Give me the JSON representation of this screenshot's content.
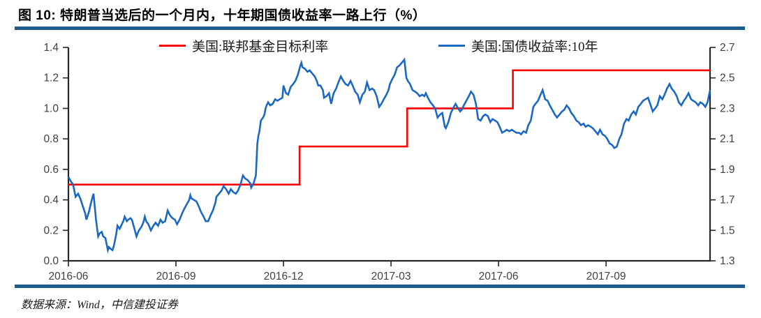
{
  "header": {
    "title": "图 10: 特朗普当选后的一个月内，十年期国债收益率一路上行（%）"
  },
  "footer": {
    "source": "数据来源：Wind，中信建投证券"
  },
  "colors": {
    "accent_bar": "#1E5C8B",
    "fed_funds_line": "#FE0000",
    "treasury_line": "#1B68C4",
    "axis_line": "#262626",
    "tick_label": "#404040"
  },
  "chart_data": {
    "type": "line",
    "title": "特朗普当选后的一个月内，十年期国债收益率一路上行（%）",
    "xlabel": "",
    "ylabel_left": "美国:联邦基金目标利率 (%)",
    "ylabel_right": "美国:国债收益率:10年 (%)",
    "grid": false,
    "legend_position": "top",
    "x_range_note": "m = months since 2016-06-01",
    "x_max_m": 17.9,
    "x_ticks": [
      {
        "m": 0,
        "label": "2016-06"
      },
      {
        "m": 3,
        "label": "2016-09"
      },
      {
        "m": 6,
        "label": "2016-12"
      },
      {
        "m": 9,
        "label": "2017-03"
      },
      {
        "m": 12,
        "label": "2017-06"
      },
      {
        "m": 15,
        "label": "2017-09"
      }
    ],
    "left_axis": {
      "min": 0.0,
      "max": 1.4,
      "step": 0.2,
      "tick_labels": [
        "0.0",
        "0.2",
        "0.4",
        "0.6",
        "0.8",
        "1.0",
        "1.2",
        "1.4"
      ]
    },
    "right_axis": {
      "min": 1.3,
      "max": 2.7,
      "step": 0.2,
      "tick_labels": [
        "1.3",
        "1.5",
        "1.7",
        "1.9",
        "2.1",
        "2.3",
        "2.5",
        "2.7"
      ]
    },
    "series": [
      {
        "name": "美国:联邦基金目标利率",
        "axis": "left",
        "color": "#FE0000",
        "style": "step",
        "points": [
          [
            0,
            0.5
          ],
          [
            6.45,
            0.5
          ],
          [
            6.45,
            0.75
          ],
          [
            9.45,
            0.75
          ],
          [
            9.45,
            1.0
          ],
          [
            12.4,
            1.0
          ],
          [
            12.4,
            1.25
          ],
          [
            17.9,
            1.25
          ]
        ]
      },
      {
        "name": "美国:国债收益率:10年",
        "axis": "right",
        "color": "#1B68C4",
        "style": "line",
        "points": [
          [
            0.0,
            1.85
          ],
          [
            0.07,
            1.82
          ],
          [
            0.13,
            1.8
          ],
          [
            0.2,
            1.72
          ],
          [
            0.27,
            1.74
          ],
          [
            0.33,
            1.71
          ],
          [
            0.4,
            1.66
          ],
          [
            0.47,
            1.61
          ],
          [
            0.5,
            1.57
          ],
          [
            0.57,
            1.62
          ],
          [
            0.63,
            1.68
          ],
          [
            0.7,
            1.74
          ],
          [
            0.75,
            1.62
          ],
          [
            0.77,
            1.57
          ],
          [
            0.83,
            1.46
          ],
          [
            0.87,
            1.48
          ],
          [
            0.93,
            1.49
          ],
          [
            0.97,
            1.46
          ],
          [
            1.03,
            1.45
          ],
          [
            1.1,
            1.37
          ],
          [
            1.13,
            1.39
          ],
          [
            1.17,
            1.38
          ],
          [
            1.23,
            1.37
          ],
          [
            1.27,
            1.4
          ],
          [
            1.33,
            1.47
          ],
          [
            1.37,
            1.53
          ],
          [
            1.43,
            1.51
          ],
          [
            1.47,
            1.53
          ],
          [
            1.53,
            1.56
          ],
          [
            1.57,
            1.59
          ],
          [
            1.63,
            1.56
          ],
          [
            1.67,
            1.57
          ],
          [
            1.73,
            1.58
          ],
          [
            1.77,
            1.57
          ],
          [
            1.83,
            1.52
          ],
          [
            1.9,
            1.46
          ],
          [
            1.93,
            1.48
          ],
          [
            1.97,
            1.5
          ],
          [
            2.03,
            1.52
          ],
          [
            2.07,
            1.54
          ],
          [
            2.1,
            1.56
          ],
          [
            2.13,
            1.59
          ],
          [
            2.17,
            1.56
          ],
          [
            2.23,
            1.54
          ],
          [
            2.3,
            1.5
          ],
          [
            2.37,
            1.53
          ],
          [
            2.43,
            1.55
          ],
          [
            2.5,
            1.53
          ],
          [
            2.57,
            1.57
          ],
          [
            2.63,
            1.55
          ],
          [
            2.7,
            1.56
          ],
          [
            2.77,
            1.63
          ],
          [
            2.83,
            1.6
          ],
          [
            2.9,
            1.58
          ],
          [
            2.97,
            1.57
          ],
          [
            3.03,
            1.54
          ],
          [
            3.1,
            1.57
          ],
          [
            3.17,
            1.61
          ],
          [
            3.23,
            1.64
          ],
          [
            3.3,
            1.67
          ],
          [
            3.37,
            1.7
          ],
          [
            3.4,
            1.73
          ],
          [
            3.43,
            1.71
          ],
          [
            3.5,
            1.7
          ],
          [
            3.57,
            1.69
          ],
          [
            3.63,
            1.66
          ],
          [
            3.7,
            1.62
          ],
          [
            3.77,
            1.59
          ],
          [
            3.83,
            1.56
          ],
          [
            3.9,
            1.56
          ],
          [
            3.97,
            1.6
          ],
          [
            4.03,
            1.63
          ],
          [
            4.1,
            1.68
          ],
          [
            4.13,
            1.72
          ],
          [
            4.2,
            1.74
          ],
          [
            4.27,
            1.76
          ],
          [
            4.33,
            1.79
          ],
          [
            4.4,
            1.77
          ],
          [
            4.47,
            1.74
          ],
          [
            4.53,
            1.77
          ],
          [
            4.6,
            1.75
          ],
          [
            4.67,
            1.74
          ],
          [
            4.73,
            1.76
          ],
          [
            4.8,
            1.8
          ],
          [
            4.87,
            1.86
          ],
          [
            4.93,
            1.84
          ],
          [
            5.0,
            1.83
          ],
          [
            5.07,
            1.81
          ],
          [
            5.1,
            1.78
          ],
          [
            5.17,
            1.81
          ],
          [
            5.23,
            1.86
          ],
          [
            5.27,
            2.07
          ],
          [
            5.3,
            2.12
          ],
          [
            5.33,
            2.15
          ],
          [
            5.37,
            2.22
          ],
          [
            5.43,
            2.24
          ],
          [
            5.47,
            2.26
          ],
          [
            5.5,
            2.3
          ],
          [
            5.53,
            2.32
          ],
          [
            5.57,
            2.34
          ],
          [
            5.63,
            2.32
          ],
          [
            5.7,
            2.33
          ],
          [
            5.77,
            2.36
          ],
          [
            5.83,
            2.35
          ],
          [
            5.9,
            2.36
          ],
          [
            5.97,
            2.37
          ],
          [
            6.0,
            2.45
          ],
          [
            6.07,
            2.4
          ],
          [
            6.13,
            2.39
          ],
          [
            6.2,
            2.44
          ],
          [
            6.27,
            2.46
          ],
          [
            6.33,
            2.48
          ],
          [
            6.4,
            2.52
          ],
          [
            6.47,
            2.58
          ],
          [
            6.5,
            2.6
          ],
          [
            6.53,
            2.57
          ],
          [
            6.6,
            2.56
          ],
          [
            6.67,
            2.54
          ],
          [
            6.73,
            2.55
          ],
          [
            6.8,
            2.53
          ],
          [
            6.87,
            2.51
          ],
          [
            6.93,
            2.48
          ],
          [
            6.97,
            2.45
          ],
          [
            7.03,
            2.45
          ],
          [
            7.1,
            2.42
          ],
          [
            7.13,
            2.37
          ],
          [
            7.2,
            2.38
          ],
          [
            7.27,
            2.4
          ],
          [
            7.33,
            2.33
          ],
          [
            7.4,
            2.4
          ],
          [
            7.47,
            2.43
          ],
          [
            7.53,
            2.47
          ],
          [
            7.6,
            2.51
          ],
          [
            7.67,
            2.48
          ],
          [
            7.73,
            2.46
          ],
          [
            7.8,
            2.45
          ],
          [
            7.87,
            2.48
          ],
          [
            7.93,
            2.45
          ],
          [
            8.0,
            2.41
          ],
          [
            8.07,
            2.39
          ],
          [
            8.13,
            2.34
          ],
          [
            8.2,
            2.39
          ],
          [
            8.27,
            2.41
          ],
          [
            8.33,
            2.47
          ],
          [
            8.4,
            2.42
          ],
          [
            8.47,
            2.43
          ],
          [
            8.53,
            2.42
          ],
          [
            8.6,
            2.38
          ],
          [
            8.67,
            2.31
          ],
          [
            8.73,
            2.33
          ],
          [
            8.8,
            2.36
          ],
          [
            8.87,
            2.39
          ],
          [
            8.93,
            2.42
          ],
          [
            8.97,
            2.46
          ],
          [
            9.03,
            2.49
          ],
          [
            9.1,
            2.52
          ],
          [
            9.17,
            2.57
          ],
          [
            9.23,
            2.58
          ],
          [
            9.3,
            2.6
          ],
          [
            9.37,
            2.62
          ],
          [
            9.43,
            2.5
          ],
          [
            9.47,
            2.48
          ],
          [
            9.53,
            2.46
          ],
          [
            9.6,
            2.42
          ],
          [
            9.67,
            2.41
          ],
          [
            9.73,
            2.4
          ],
          [
            9.8,
            2.38
          ],
          [
            9.87,
            2.39
          ],
          [
            9.93,
            2.38
          ],
          [
            9.97,
            2.4
          ],
          [
            10.03,
            2.37
          ],
          [
            10.1,
            2.34
          ],
          [
            10.17,
            2.32
          ],
          [
            10.23,
            2.3
          ],
          [
            10.3,
            2.24
          ],
          [
            10.37,
            2.26
          ],
          [
            10.43,
            2.27
          ],
          [
            10.5,
            2.18
          ],
          [
            10.53,
            2.17
          ],
          [
            10.6,
            2.21
          ],
          [
            10.67,
            2.27
          ],
          [
            10.73,
            2.3
          ],
          [
            10.8,
            2.33
          ],
          [
            10.87,
            2.3
          ],
          [
            10.93,
            2.28
          ],
          [
            10.97,
            2.29
          ],
          [
            11.03,
            2.32
          ],
          [
            11.1,
            2.35
          ],
          [
            11.17,
            2.38
          ],
          [
            11.23,
            2.41
          ],
          [
            11.3,
            2.39
          ],
          [
            11.37,
            2.33
          ],
          [
            11.43,
            2.23
          ],
          [
            11.5,
            2.22
          ],
          [
            11.57,
            2.25
          ],
          [
            11.63,
            2.26
          ],
          [
            11.7,
            2.25
          ],
          [
            11.77,
            2.21
          ],
          [
            11.83,
            2.23
          ],
          [
            11.9,
            2.22
          ],
          [
            11.97,
            2.21
          ],
          [
            12.03,
            2.18
          ],
          [
            12.1,
            2.14
          ],
          [
            12.17,
            2.15
          ],
          [
            12.23,
            2.16
          ],
          [
            12.3,
            2.15
          ],
          [
            12.37,
            2.16
          ],
          [
            12.43,
            2.15
          ],
          [
            12.5,
            2.14
          ],
          [
            12.57,
            2.14
          ],
          [
            12.63,
            2.13
          ],
          [
            12.7,
            2.15
          ],
          [
            12.77,
            2.14
          ],
          [
            12.83,
            2.19
          ],
          [
            12.9,
            2.22
          ],
          [
            12.97,
            2.31
          ],
          [
            13.03,
            2.33
          ],
          [
            13.1,
            2.35
          ],
          [
            13.17,
            2.39
          ],
          [
            13.23,
            2.42
          ],
          [
            13.3,
            2.36
          ],
          [
            13.37,
            2.35
          ],
          [
            13.43,
            2.32
          ],
          [
            13.5,
            2.29
          ],
          [
            13.57,
            2.26
          ],
          [
            13.63,
            2.24
          ],
          [
            13.7,
            2.26
          ],
          [
            13.77,
            2.28
          ],
          [
            13.83,
            2.29
          ],
          [
            13.9,
            2.32
          ],
          [
            13.97,
            2.3
          ],
          [
            14.03,
            2.27
          ],
          [
            14.1,
            2.25
          ],
          [
            14.17,
            2.22
          ],
          [
            14.23,
            2.21
          ],
          [
            14.3,
            2.19
          ],
          [
            14.37,
            2.2
          ],
          [
            14.43,
            2.18
          ],
          [
            14.5,
            2.19
          ],
          [
            14.57,
            2.18
          ],
          [
            14.63,
            2.17
          ],
          [
            14.7,
            2.15
          ],
          [
            14.77,
            2.13
          ],
          [
            14.83,
            2.16
          ],
          [
            14.9,
            2.13
          ],
          [
            14.97,
            2.12
          ],
          [
            15.03,
            2.1
          ],
          [
            15.1,
            2.07
          ],
          [
            15.17,
            2.06
          ],
          [
            15.23,
            2.04
          ],
          [
            15.3,
            2.05
          ],
          [
            15.37,
            2.1
          ],
          [
            15.43,
            2.13
          ],
          [
            15.5,
            2.2
          ],
          [
            15.57,
            2.23
          ],
          [
            15.63,
            2.22
          ],
          [
            15.7,
            2.26
          ],
          [
            15.77,
            2.28
          ],
          [
            15.83,
            2.26
          ],
          [
            15.9,
            2.31
          ],
          [
            15.97,
            2.33
          ],
          [
            16.03,
            2.35
          ],
          [
            16.1,
            2.36
          ],
          [
            16.17,
            2.37
          ],
          [
            16.23,
            2.33
          ],
          [
            16.3,
            2.28
          ],
          [
            16.37,
            2.3
          ],
          [
            16.43,
            2.32
          ],
          [
            16.5,
            2.38
          ],
          [
            16.57,
            2.36
          ],
          [
            16.63,
            2.39
          ],
          [
            16.7,
            2.43
          ],
          [
            16.77,
            2.46
          ],
          [
            16.83,
            2.43
          ],
          [
            16.9,
            2.41
          ],
          [
            16.97,
            2.38
          ],
          [
            17.03,
            2.34
          ],
          [
            17.1,
            2.32
          ],
          [
            17.17,
            2.35
          ],
          [
            17.23,
            2.37
          ],
          [
            17.3,
            2.4
          ],
          [
            17.37,
            2.36
          ],
          [
            17.43,
            2.35
          ],
          [
            17.5,
            2.34
          ],
          [
            17.57,
            2.32
          ],
          [
            17.63,
            2.34
          ],
          [
            17.7,
            2.33
          ],
          [
            17.77,
            2.31
          ],
          [
            17.83,
            2.34
          ],
          [
            17.9,
            2.42
          ]
        ]
      }
    ]
  }
}
